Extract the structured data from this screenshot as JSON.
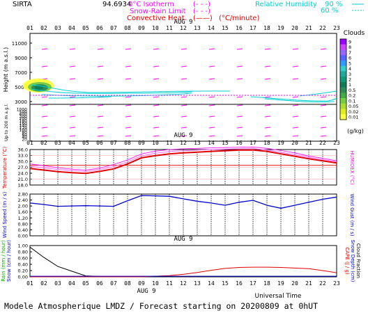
{
  "header": {
    "site": "SIRTA",
    "coord": "94.6934",
    "isotherm": "0°C Isotherm",
    "snow_rain": "Snow-Rain Limit",
    "convective": "Convective Heat.",
    "conv_unit": "(°C/minute)",
    "rh_label": "Relative Humidity",
    "rh_90": "90 %",
    "rh_60": "60 %"
  },
  "colors": {
    "magenta": "#ff00ff",
    "cyan": "#00e5e5",
    "red": "#e00000",
    "blue": "#0000cc",
    "black": "#000000"
  },
  "date_label": "AUG  9",
  "hours": [
    "01",
    "02",
    "03",
    "04",
    "05",
    "06",
    "07",
    "08",
    "09",
    "10",
    "11",
    "12",
    "13",
    "14",
    "15",
    "16",
    "17",
    "18",
    "19",
    "20",
    "21",
    "22",
    "23"
  ],
  "footer": {
    "title": "Modele Atmospherique LMDZ / Forecast starting on 20200809 at 0hUT",
    "universal_time": "Universal Time"
  },
  "chart_data": [
    {
      "type": "heatmap",
      "id": "height",
      "ylabel": "Height (m a.s.l.)",
      "ylabel2": "Up to 200 m a.g.l.",
      "yticks_upper": [
        11000,
        9000,
        7000,
        5000,
        3000
      ],
      "yticks_lower": [
        1000,
        500,
        400,
        300,
        200,
        180,
        160,
        140,
        120,
        100,
        80,
        60,
        40,
        20
      ],
      "colorbar": {
        "title": "Clouds",
        "unit": "(g/kg)",
        "ticks": [
          "9",
          "8",
          "7",
          "6",
          "5",
          "4",
          "3",
          "2",
          "1",
          "0.5",
          "0.2",
          "0.1",
          "0.05",
          "0.02",
          "0.01"
        ],
        "colors": [
          "#9900ff",
          "#cc44ff",
          "#9966ff",
          "#5566ff",
          "#3399ff",
          "#33cccc",
          "#22aa99",
          "#119977",
          "#107a55",
          "#2e8b57",
          "#44aa44",
          "#77cc44",
          "#aadd33",
          "#ddee22",
          "#ffff44"
        ]
      },
      "isotherm_height_m": [
        3850,
        3850,
        3850,
        3850,
        3850,
        3850,
        3850,
        3850,
        3850,
        3850,
        3850,
        3850,
        3850,
        3850,
        3850,
        3850,
        3850,
        3850,
        3850,
        3850,
        3850,
        3850,
        3850
      ]
    },
    {
      "type": "line",
      "id": "temperature",
      "ylabel": "Temperature (°C)",
      "y2label": "HUMIDEX (°C)",
      "yticks": [
        18.0,
        21.0,
        24.0,
        27.0,
        30.0,
        33.0,
        36.0
      ],
      "ylim": [
        18,
        36
      ],
      "series": [
        {
          "values": [
            26.4,
            25.6,
            24.8,
            24.3,
            23.9,
            24.9,
            26.2,
            28.7,
            31.8,
            32.9,
            33.8,
            34.3,
            34.7,
            35.1,
            35.4,
            35.7,
            35.8,
            35.1,
            33.8,
            32.6,
            31.3,
            30.3,
            29.2
          ]
        },
        {
          "values": [
            28.7,
            27.8,
            26.8,
            26.1,
            25.6,
            26.6,
            28.4,
            30.7,
            33.8,
            35.2,
            36.0,
            36.4,
            36.6,
            36.9,
            37.0,
            37.2,
            37.3,
            36.6,
            35.5,
            34.3,
            32.7,
            31.6,
            30.3
          ]
        },
        {
          "values": [
            27.5,
            26.7,
            25.9,
            25.4,
            24.9,
            25.9,
            27.3,
            29.7,
            32.8,
            34.1,
            35.0,
            35.4,
            35.7,
            36.0,
            36.2,
            36.4,
            36.5,
            35.8,
            34.6,
            33.4,
            32.0,
            30.9,
            29.8
          ]
        }
      ]
    },
    {
      "type": "line",
      "id": "wind",
      "ylabel": "Wind Speed (m / s)",
      "y2label": "Wind Gust (m / s)",
      "yticks": [
        0.0,
        0.4,
        0.8,
        1.2,
        1.6,
        2.0,
        2.4,
        2.8
      ],
      "ylim": [
        0,
        2.8
      ],
      "series": [
        {
          "values": [
            2.2,
            2.1,
            1.98,
            2.0,
            2.02,
            2.0,
            1.98,
            2.35,
            2.7,
            2.68,
            2.65,
            2.48,
            2.32,
            2.2,
            2.05,
            2.25,
            2.38,
            2.05,
            1.85,
            2.05,
            2.25,
            2.45,
            2.6
          ]
        }
      ]
    },
    {
      "type": "line",
      "id": "rain",
      "ylabel": "Rain (mm / hour)",
      "ylabel_b": "Snow (cm / hour)",
      "y2label": "CAPE (J / g)",
      "y2label_b": "Snow Depth (cm)",
      "y2label_c": "Cloud Fraction",
      "yticks": [
        0.0,
        0.2,
        0.4,
        0.6,
        0.8,
        1.0
      ],
      "ylim": [
        0,
        1.0
      ],
      "series": [
        {
          "values": [
            0.95,
            0.62,
            0.33,
            0.18,
            0.03,
            0.01,
            0.0,
            0.0,
            0.0,
            0.0,
            0.0,
            0.0,
            0.0,
            0.0,
            0.0,
            0.0,
            0.0,
            0.0,
            0.0,
            0.0,
            0.0,
            0.0,
            0.0
          ]
        },
        {
          "values": [
            0.0,
            0.0,
            0.0,
            0.0,
            0.0,
            0.0,
            0.0,
            0.0,
            0.0,
            0.02,
            0.04,
            0.08,
            0.14,
            0.21,
            0.27,
            0.3,
            0.31,
            0.31,
            0.3,
            0.28,
            0.26,
            0.2,
            0.13
          ]
        },
        {
          "values": [
            0.02,
            0.02,
            0.02,
            0.02,
            0.02,
            0.02,
            0.02,
            0.02,
            0.02,
            0.02,
            0.02,
            0.02,
            0.02,
            0.02,
            0.02,
            0.02,
            0.02,
            0.02,
            0.02,
            0.02,
            0.02,
            0.02,
            0.02
          ]
        }
      ]
    }
  ]
}
